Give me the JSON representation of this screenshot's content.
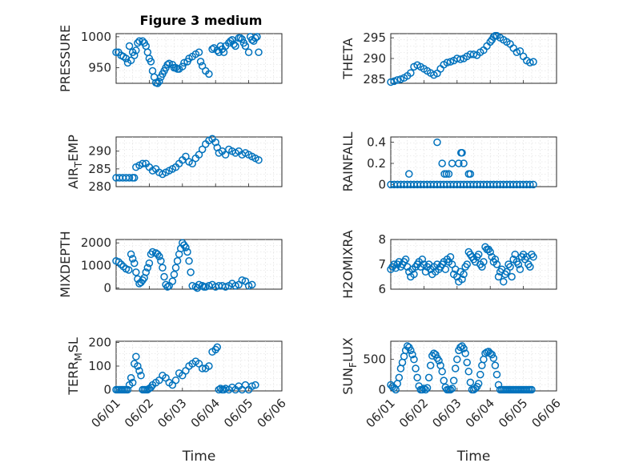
{
  "figure": {
    "title": "Figure 3 medium"
  },
  "colors": {
    "marker": "#0072BD"
  },
  "chart_data": [
    {
      "type": "scatter",
      "id": "pressure",
      "ylabel": "PRESSURE",
      "ylim": [
        925,
        1005
      ],
      "yticks": [
        950,
        1000
      ],
      "yticklabels": [
        "950",
        "1000"
      ],
      "xlim": [
        0,
        5
      ],
      "xticks": [
        0,
        1,
        2,
        3,
        4,
        5
      ],
      "xticklabels": [
        "06/01",
        "06/02",
        "06/03",
        "06/04",
        "06/05",
        "06/06"
      ],
      "xlabel": "",
      "grid": true,
      "x": [
        0.0,
        0.07,
        0.15,
        0.22,
        0.3,
        0.35,
        0.4,
        0.45,
        0.5,
        0.55,
        0.6,
        0.65,
        0.7,
        0.8,
        0.85,
        0.9,
        0.95,
        1.0,
        1.05,
        1.1,
        1.15,
        1.2,
        1.25,
        1.3,
        1.35,
        1.4,
        1.45,
        1.5,
        1.55,
        1.6,
        1.7,
        1.75,
        1.8,
        1.85,
        1.9,
        2.0,
        2.05,
        2.15,
        2.2,
        2.3,
        2.4,
        2.5,
        2.55,
        2.6,
        2.7,
        2.8,
        2.9,
        2.95,
        3.05,
        3.1,
        3.15,
        3.2,
        3.25,
        3.3,
        3.4,
        3.45,
        3.5,
        3.55,
        3.6,
        3.7,
        3.75,
        3.8,
        3.85,
        3.9,
        4.0,
        4.05,
        4.1,
        4.15,
        4.2,
        4.25,
        4.3
      ],
      "y": [
        975,
        975,
        970,
        968,
        965,
        958,
        985,
        962,
        975,
        970,
        978,
        990,
        993,
        993,
        990,
        985,
        975,
        965,
        960,
        945,
        935,
        926,
        925,
        928,
        935,
        940,
        945,
        950,
        955,
        957,
        955,
        950,
        950,
        948,
        948,
        952,
        958,
        960,
        965,
        968,
        972,
        975,
        960,
        953,
        945,
        940,
        980,
        982,
        978,
        975,
        985,
        980,
        975,
        985,
        990,
        993,
        995,
        988,
        985,
        998,
        998,
        996,
        990,
        985,
        975,
        1000,
        995,
        993,
        998,
        1000,
        975
      ]
    },
    {
      "type": "scatter",
      "id": "theta",
      "ylabel": "THETA",
      "ylim": [
        284,
        296
      ],
      "yticks": [
        285,
        290,
        295
      ],
      "yticklabels": [
        "285",
        "290",
        "295"
      ],
      "xlim": [
        0,
        5
      ],
      "xticks": [
        0,
        1,
        2,
        3,
        4,
        5
      ],
      "xticklabels": [
        "06/01",
        "06/02",
        "06/03",
        "06/04",
        "06/05",
        "06/06"
      ],
      "xlabel": "",
      "grid": true,
      "x": [
        0.0,
        0.1,
        0.2,
        0.3,
        0.4,
        0.5,
        0.6,
        0.7,
        0.8,
        0.9,
        1.0,
        1.1,
        1.2,
        1.3,
        1.4,
        1.5,
        1.6,
        1.7,
        1.8,
        1.9,
        2.0,
        2.1,
        2.2,
        2.3,
        2.4,
        2.5,
        2.6,
        2.7,
        2.8,
        2.9,
        3.0,
        3.05,
        3.1,
        3.15,
        3.2,
        3.3,
        3.4,
        3.5,
        3.6,
        3.7,
        3.8,
        3.9,
        4.0,
        4.1,
        4.2,
        4.3
      ],
      "y": [
        284.3,
        284.5,
        284.8,
        285.0,
        285.3,
        285.8,
        286.5,
        288.0,
        288.4,
        288.0,
        287.5,
        287.0,
        286.5,
        286.0,
        286.4,
        287.5,
        288.5,
        289.0,
        289.2,
        289.5,
        290.0,
        289.8,
        290.0,
        290.5,
        291.0,
        291.0,
        290.8,
        291.5,
        292.0,
        293.0,
        294.0,
        294.5,
        295.2,
        295.5,
        295.5,
        295.0,
        294.5,
        294.0,
        293.5,
        292.5,
        291.5,
        291.8,
        290.5,
        289.5,
        289.0,
        289.2
      ]
    },
    {
      "type": "scatter",
      "id": "air_temp",
      "ylabel": "AIR_TEMP",
      "ylim": [
        280,
        294
      ],
      "yticks": [
        280,
        285,
        290
      ],
      "yticklabels": [
        "280",
        "285",
        "290"
      ],
      "xlim": [
        0,
        5
      ],
      "xticks": [
        0,
        1,
        2,
        3,
        4,
        5
      ],
      "xticklabels": [
        "06/01",
        "06/02",
        "06/03",
        "06/04",
        "06/05",
        "06/06"
      ],
      "xlabel": "",
      "grid": true,
      "x": [
        0.0,
        0.1,
        0.2,
        0.3,
        0.4,
        0.5,
        0.55,
        0.6,
        0.7,
        0.8,
        0.9,
        1.0,
        1.1,
        1.2,
        1.3,
        1.4,
        1.5,
        1.6,
        1.7,
        1.8,
        1.9,
        2.0,
        2.1,
        2.2,
        2.3,
        2.4,
        2.5,
        2.6,
        2.7,
        2.8,
        2.9,
        3.0,
        3.05,
        3.1,
        3.2,
        3.3,
        3.4,
        3.5,
        3.6,
        3.7,
        3.8,
        3.9,
        4.0,
        4.1,
        4.2,
        4.3
      ],
      "y": [
        282.5,
        282.5,
        282.5,
        282.5,
        282.5,
        282.5,
        282.5,
        285.5,
        286.0,
        286.5,
        286.5,
        285.5,
        284.5,
        285.0,
        284.0,
        283.5,
        284.0,
        284.5,
        285.0,
        285.5,
        286.5,
        287.5,
        288.5,
        287.0,
        286.5,
        288.0,
        289.0,
        290.5,
        292.0,
        293.0,
        293.5,
        292.5,
        291.0,
        289.5,
        290.0,
        289.0,
        290.5,
        290.0,
        289.5,
        290.0,
        289.0,
        289.5,
        289.0,
        288.5,
        288.0,
        287.5
      ]
    },
    {
      "type": "scatter",
      "id": "rainfall",
      "ylabel": "RAINFALL",
      "ylim": [
        -0.02,
        0.45
      ],
      "yticks": [
        0,
        0.2,
        0.4
      ],
      "yticklabels": [
        "0",
        "0.2",
        "0.4"
      ],
      "xlim": [
        0,
        5
      ],
      "xticks": [
        0,
        1,
        2,
        3,
        4,
        5
      ],
      "xticklabels": [
        "06/01",
        "06/02",
        "06/03",
        "06/04",
        "06/05",
        "06/06"
      ],
      "xlabel": "",
      "grid": true,
      "x": [
        0.0,
        0.1,
        0.2,
        0.3,
        0.4,
        0.5,
        0.6,
        0.7,
        0.8,
        0.9,
        1.0,
        1.1,
        1.2,
        1.3,
        1.4,
        1.5,
        1.6,
        1.7,
        1.8,
        1.9,
        2.0,
        2.1,
        2.2,
        2.3,
        2.4,
        2.5,
        2.6,
        2.7,
        2.8,
        2.9,
        3.0,
        3.1,
        3.2,
        3.3,
        3.4,
        3.5,
        3.6,
        3.7,
        3.8,
        3.9,
        4.0,
        4.1,
        4.2,
        4.3,
        0.55,
        1.4,
        1.55,
        1.62,
        1.68,
        1.75,
        1.85,
        2.05,
        2.12,
        2.15,
        2.2,
        2.35,
        2.4
      ],
      "y": [
        0,
        0,
        0,
        0,
        0,
        0,
        0,
        0,
        0,
        0,
        0,
        0,
        0,
        0,
        0,
        0,
        0,
        0,
        0,
        0,
        0,
        0,
        0,
        0,
        0,
        0,
        0,
        0,
        0,
        0,
        0,
        0,
        0,
        0,
        0,
        0,
        0,
        0,
        0,
        0,
        0,
        0,
        0,
        0,
        0.1,
        0.4,
        0.2,
        0.1,
        0.1,
        0.1,
        0.2,
        0.2,
        0.3,
        0.3,
        0.2,
        0.1,
        0.1
      ]
    },
    {
      "type": "scatter",
      "id": "mixdepth",
      "ylabel": "MIXDEPTH",
      "ylim": [
        -50,
        2150
      ],
      "yticks": [
        0,
        1000,
        2000
      ],
      "yticklabels": [
        "0",
        "1000",
        "2000"
      ],
      "xlim": [
        0,
        5
      ],
      "xticks": [
        0,
        1,
        2,
        3,
        4,
        5
      ],
      "xticklabels": [
        "06/01",
        "06/02",
        "06/03",
        "06/04",
        "06/05",
        "06/06"
      ],
      "xlabel": "",
      "grid": true,
      "x": [
        0.0,
        0.08,
        0.15,
        0.22,
        0.3,
        0.38,
        0.45,
        0.5,
        0.55,
        0.6,
        0.65,
        0.7,
        0.75,
        0.8,
        0.85,
        0.9,
        0.95,
        1.0,
        1.05,
        1.1,
        1.2,
        1.25,
        1.3,
        1.35,
        1.4,
        1.45,
        1.5,
        1.55,
        1.6,
        1.7,
        1.75,
        1.8,
        1.85,
        1.9,
        1.95,
        2.0,
        2.05,
        2.1,
        2.15,
        2.2,
        2.25,
        2.3,
        2.4,
        2.45,
        2.5,
        2.6,
        2.65,
        2.7,
        2.8,
        2.9,
        3.0,
        3.1,
        3.2,
        3.3,
        3.4,
        3.5,
        3.6,
        3.7,
        3.8,
        3.9,
        4.0,
        4.1
      ],
      "y": [
        1200,
        1150,
        1050,
        950,
        850,
        800,
        1500,
        1300,
        1100,
        700,
        400,
        200,
        250,
        350,
        450,
        700,
        900,
        1100,
        1500,
        1600,
        1550,
        1500,
        1400,
        1200,
        900,
        500,
        150,
        50,
        100,
        300,
        600,
        900,
        1200,
        1500,
        1750,
        2000,
        1900,
        1800,
        1600,
        1200,
        700,
        100,
        50,
        0,
        150,
        100,
        50,
        50,
        100,
        150,
        50,
        100,
        100,
        50,
        100,
        200,
        100,
        150,
        350,
        300,
        100,
        150
      ]
    },
    {
      "type": "scatter",
      "id": "h2omixra",
      "ylabel": "H2OMIXRA",
      "ylim": [
        6,
        8
      ],
      "yticks": [
        6,
        7,
        8
      ],
      "yticklabels": [
        "6",
        "7",
        "8"
      ],
      "xlim": [
        0,
        5
      ],
      "xticks": [
        0,
        1,
        2,
        3,
        4,
        5
      ],
      "xticklabels": [
        "06/01",
        "06/02",
        "06/03",
        "06/04",
        "06/05",
        "06/06"
      ],
      "xlabel": "",
      "grid": true,
      "x": [
        0.0,
        0.05,
        0.1,
        0.15,
        0.2,
        0.25,
        0.3,
        0.35,
        0.4,
        0.45,
        0.5,
        0.55,
        0.6,
        0.65,
        0.7,
        0.75,
        0.8,
        0.85,
        0.9,
        0.95,
        1.0,
        1.05,
        1.1,
        1.15,
        1.2,
        1.25,
        1.3,
        1.35,
        1.4,
        1.45,
        1.5,
        1.55,
        1.6,
        1.65,
        1.7,
        1.75,
        1.8,
        1.85,
        1.9,
        1.95,
        2.0,
        2.05,
        2.1,
        2.15,
        2.2,
        2.25,
        2.3,
        2.35,
        2.4,
        2.45,
        2.5,
        2.55,
        2.6,
        2.65,
        2.7,
        2.75,
        2.8,
        2.85,
        2.9,
        2.95,
        3.0,
        3.05,
        3.1,
        3.15,
        3.2,
        3.25,
        3.3,
        3.35,
        3.4,
        3.45,
        3.5,
        3.55,
        3.6,
        3.65,
        3.7,
        3.75,
        3.8,
        3.85,
        3.9,
        3.95,
        4.0,
        4.05,
        4.1,
        4.15,
        4.2,
        4.25,
        4.3
      ],
      "y": [
        6.8,
        6.9,
        7.0,
        6.85,
        7.0,
        7.1,
        6.9,
        7.0,
        7.1,
        7.2,
        6.9,
        6.7,
        6.5,
        6.8,
        6.6,
        6.9,
        7.0,
        7.1,
        6.9,
        7.2,
        7.0,
        6.7,
        6.9,
        7.0,
        6.8,
        6.6,
        6.9,
        6.7,
        7.0,
        6.8,
        6.9,
        7.0,
        7.1,
        6.8,
        7.2,
        7.1,
        7.3,
        7.0,
        6.6,
        6.8,
        6.5,
        6.3,
        6.7,
        6.4,
        6.6,
        6.9,
        7.0,
        7.5,
        7.4,
        7.3,
        7.2,
        7.1,
        7.3,
        7.4,
        7.0,
        6.9,
        7.1,
        7.7,
        7.6,
        7.6,
        7.5,
        7.3,
        7.1,
        7.2,
        7.0,
        6.5,
        6.7,
        6.8,
        6.3,
        6.6,
        6.7,
        7.0,
        6.9,
        6.5,
        7.2,
        7.4,
        7.1,
        7.0,
        6.8,
        7.3,
        7.4,
        7.2,
        7.3,
        7.0,
        6.9,
        7.4,
        7.3
      ]
    },
    {
      "type": "scatter",
      "id": "terr_msl",
      "ylabel": "TERR_MSL",
      "ylim": [
        -5,
        205
      ],
      "yticks": [
        0,
        100,
        200
      ],
      "yticklabels": [
        "0",
        "100",
        "200"
      ],
      "xlim": [
        0,
        5
      ],
      "xticks": [
        0,
        1,
        2,
        3,
        4,
        5
      ],
      "xticklabels": [
        "06/01",
        "06/02",
        "06/03",
        "06/04",
        "06/05",
        "06/06"
      ],
      "xlabel": "Time",
      "grid": true,
      "x": [
        0.0,
        0.05,
        0.1,
        0.15,
        0.2,
        0.25,
        0.3,
        0.35,
        0.4,
        0.45,
        0.5,
        0.55,
        0.6,
        0.65,
        0.7,
        0.75,
        0.8,
        0.85,
        0.9,
        0.95,
        1.0,
        1.05,
        1.1,
        1.2,
        1.3,
        1.4,
        1.5,
        1.6,
        1.7,
        1.8,
        1.9,
        2.0,
        2.1,
        2.2,
        2.3,
        2.4,
        2.5,
        2.6,
        2.7,
        2.8,
        2.9,
        3.0,
        3.05,
        3.1,
        3.15,
        3.2,
        3.25,
        3.3,
        3.4,
        3.5,
        3.6,
        3.7,
        3.8,
        3.9,
        4.0,
        4.1,
        4.2
      ],
      "y": [
        0,
        0,
        0,
        0,
        0,
        0,
        0,
        0,
        20,
        50,
        30,
        110,
        140,
        100,
        80,
        60,
        0,
        0,
        0,
        0,
        5,
        10,
        20,
        30,
        40,
        60,
        50,
        30,
        20,
        40,
        70,
        60,
        80,
        100,
        110,
        120,
        110,
        90,
        90,
        100,
        160,
        170,
        180,
        0,
        5,
        0,
        0,
        5,
        0,
        10,
        0,
        15,
        0,
        20,
        0,
        15,
        20
      ]
    },
    {
      "type": "scatter",
      "id": "sun_flux",
      "ylabel": "SUN_FLUX",
      "ylim": [
        -20,
        800
      ],
      "yticks": [
        0,
        500
      ],
      "yticklabels": [
        "0",
        "500"
      ],
      "xlim": [
        0,
        5
      ],
      "xticks": [
        0,
        1,
        2,
        3,
        4,
        5
      ],
      "xticklabels": [
        "06/01",
        "06/02",
        "06/03",
        "06/04",
        "06/05",
        "06/06"
      ],
      "xlabel": "Time",
      "grid": true,
      "x": [
        0.0,
        0.05,
        0.1,
        0.15,
        0.2,
        0.25,
        0.3,
        0.35,
        0.4,
        0.45,
        0.5,
        0.55,
        0.6,
        0.65,
        0.7,
        0.75,
        0.8,
        0.85,
        0.9,
        0.95,
        1.0,
        1.05,
        1.1,
        1.15,
        1.2,
        1.25,
        1.3,
        1.35,
        1.4,
        1.45,
        1.5,
        1.55,
        1.6,
        1.65,
        1.7,
        1.75,
        1.8,
        1.85,
        1.9,
        1.95,
        2.0,
        2.05,
        2.1,
        2.15,
        2.2,
        2.25,
        2.3,
        2.35,
        2.4,
        2.45,
        2.5,
        2.55,
        2.6,
        2.65,
        2.7,
        2.75,
        2.8,
        2.85,
        2.9,
        2.95,
        3.0,
        3.05,
        3.1,
        3.15,
        3.2,
        3.25,
        3.3,
        3.35,
        3.4,
        3.45,
        3.5,
        3.55,
        3.6,
        3.65,
        3.7,
        3.75,
        3.8,
        3.85,
        3.9,
        3.95,
        4.0,
        4.05,
        4.1,
        4.15,
        4.2,
        4.25
      ],
      "y": [
        80,
        50,
        30,
        0,
        100,
        200,
        350,
        450,
        550,
        650,
        720,
        700,
        650,
        580,
        500,
        350,
        200,
        60,
        0,
        0,
        20,
        0,
        30,
        200,
        400,
        560,
        600,
        580,
        520,
        480,
        400,
        300,
        150,
        40,
        0,
        0,
        0,
        20,
        150,
        350,
        500,
        650,
        700,
        720,
        680,
        600,
        450,
        300,
        120,
        0,
        0,
        20,
        50,
        100,
        250,
        400,
        500,
        600,
        620,
        630,
        600,
        580,
        520,
        400,
        250,
        80,
        0,
        0,
        0,
        0,
        0,
        0,
        0,
        0,
        0,
        0,
        0,
        0,
        0,
        0,
        0,
        0,
        0,
        0,
        0,
        0
      ]
    }
  ]
}
